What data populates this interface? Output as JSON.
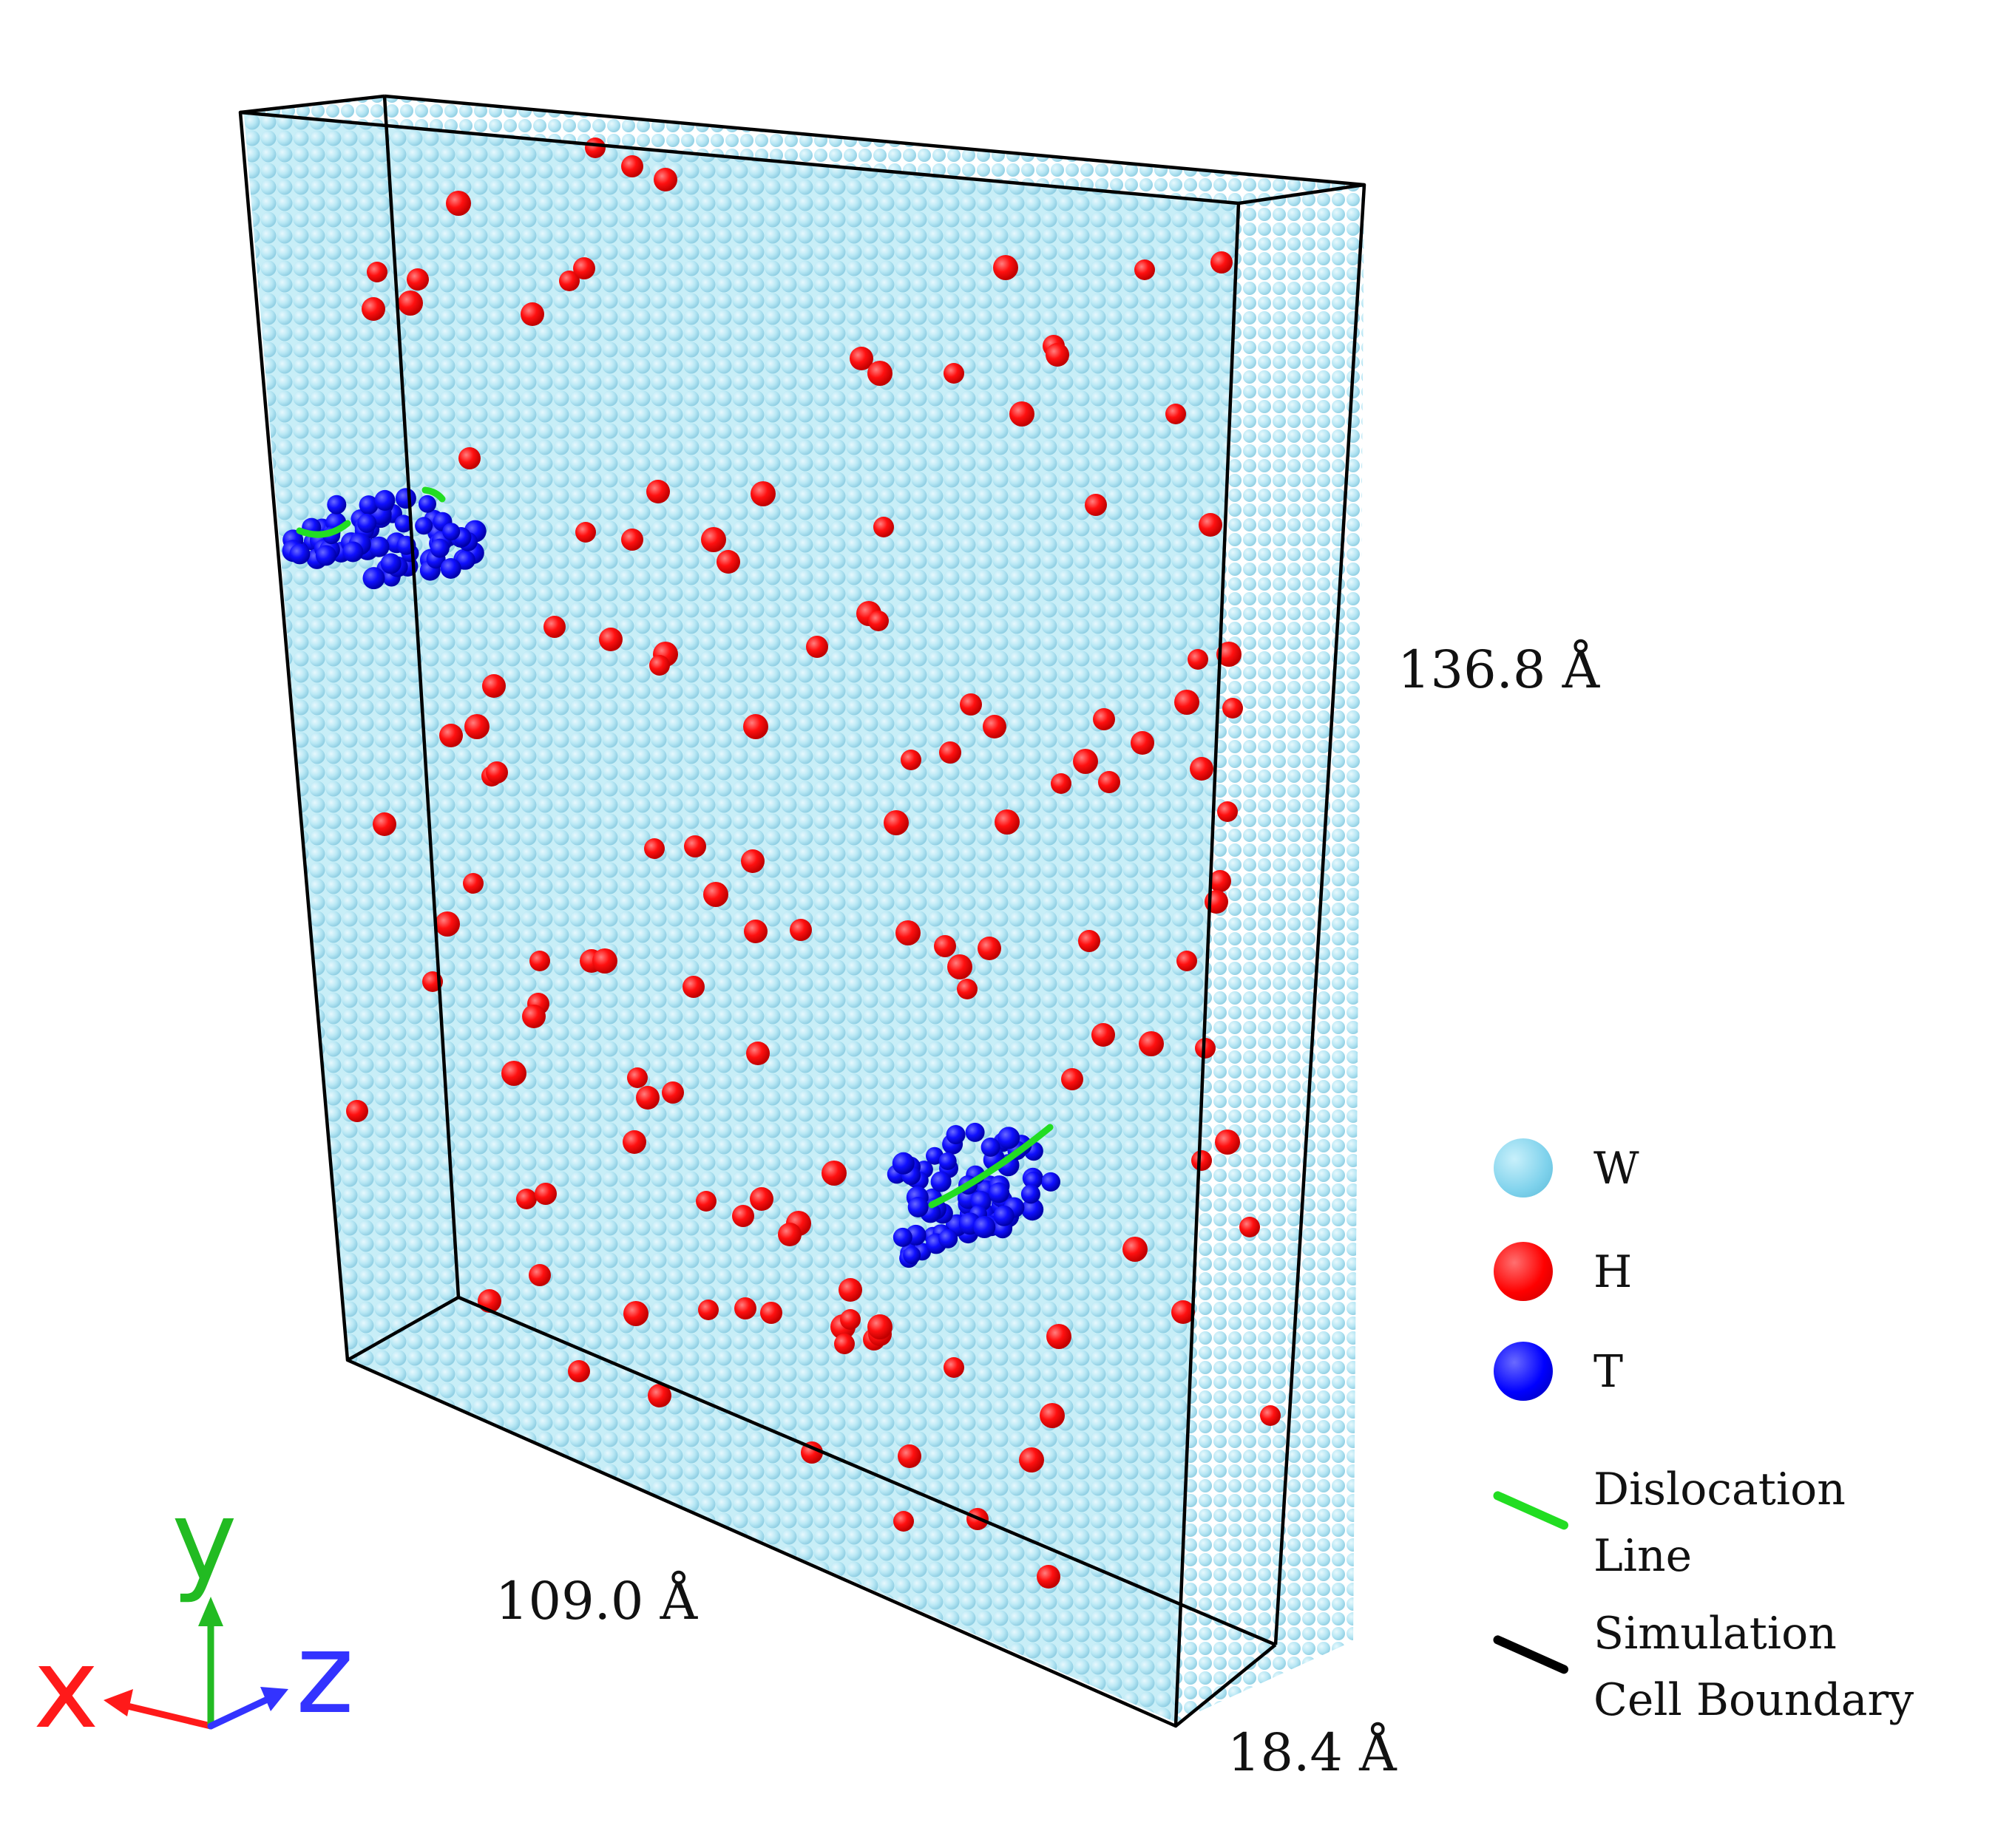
{
  "dimensions": {
    "height_label": "136.8 Å",
    "width_label": "109.0 Å",
    "depth_label": "18.4 Å"
  },
  "legend": [
    {
      "label": "W",
      "kind": "atom",
      "color": "#7fd2ec"
    },
    {
      "label": "H",
      "kind": "atom",
      "color": "#ff0000"
    },
    {
      "label": "T",
      "kind": "atom",
      "color": "#0000ff"
    },
    {
      "label": "Dislocation\nLine",
      "kind": "line",
      "color": "#22dd22"
    },
    {
      "label": "Simulation\nCell Boundary",
      "kind": "line",
      "color": "#000000"
    }
  ],
  "axes": {
    "x": {
      "label": "x",
      "color": "#ff0000"
    },
    "y": {
      "label": "y",
      "color": "#22bb22"
    },
    "z": {
      "label": "z",
      "color": "#3333ff"
    }
  },
  "colors": {
    "tungsten": "#a8e2f1",
    "hydrogen": "#ff0000",
    "tritium": "#0000ff",
    "dislocation": "#22dd22",
    "boundary": "#000000"
  }
}
